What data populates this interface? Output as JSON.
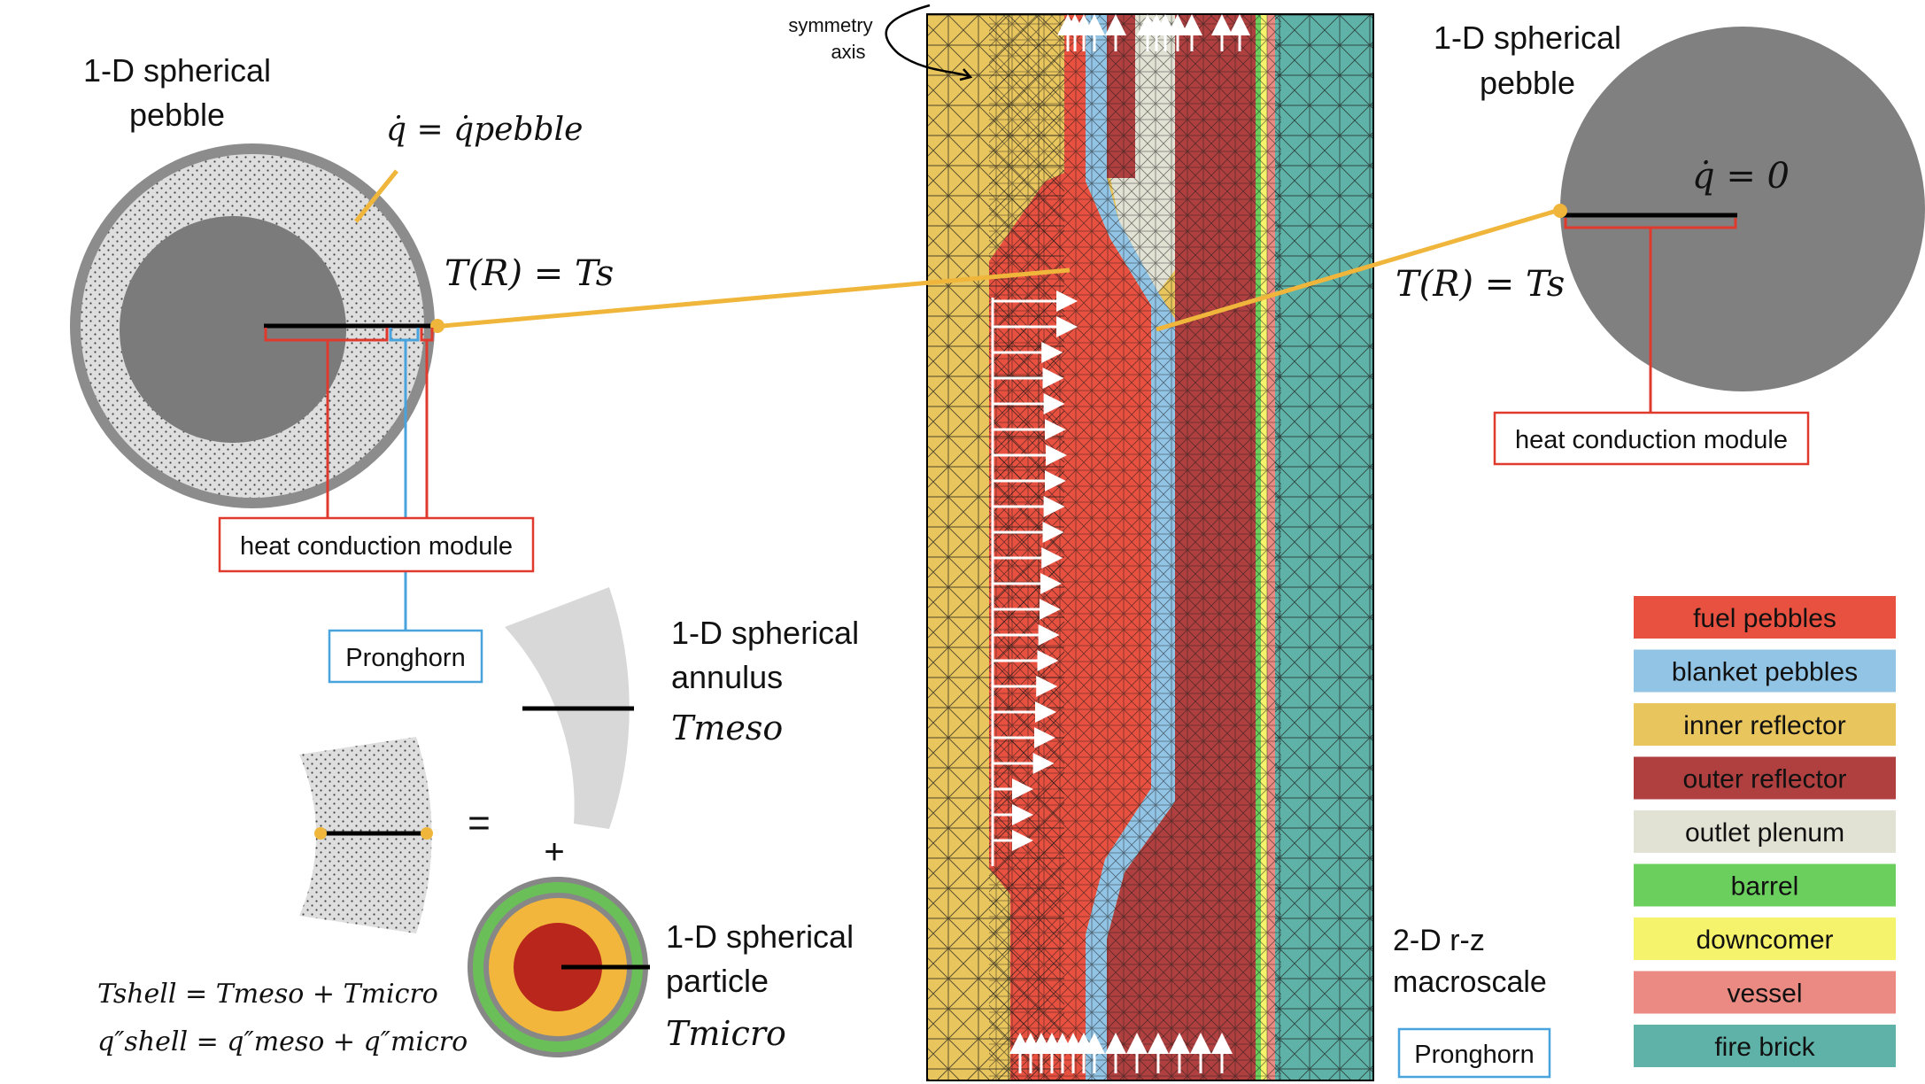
{
  "left_pebble": {
    "title_line1": "1-D spherical",
    "title_line2": "pebble",
    "heat_source_eq": "q̇ = q̇pebble",
    "boundary_eq": "T(R) = Ts",
    "module_label": "heat conduction module",
    "pronghorn_label": "Pronghorn"
  },
  "annulus": {
    "line1": "1-D spherical",
    "line2": "annulus",
    "temp": "Tmeso"
  },
  "particle": {
    "line1": "1-D spherical",
    "line2": "particle",
    "temp": "Tmicro"
  },
  "equals_sign": "=",
  "plus_sign": "+",
  "equations": {
    "shell_temp": "Tshell = Tmeso + Tmicro",
    "shell_flux": "q″shell = q″meso + q″micro"
  },
  "center": {
    "symmetry_line1": "symmetry",
    "symmetry_line2": "axis",
    "macro_line1": "2-D r-z",
    "macro_line2": "macroscale",
    "pronghorn_label": "Pronghorn"
  },
  "right_pebble": {
    "title_line1": "1-D spherical",
    "title_line2": "pebble",
    "heat_source_eq": "q̇ = 0",
    "boundary_eq": "T(R) = Ts",
    "module_label": "heat conduction module"
  },
  "legend": [
    {
      "label": "fuel pebbles",
      "color": "#e8503f"
    },
    {
      "label": "blanket pebbles",
      "color": "#92c4e6"
    },
    {
      "label": "inner reflector",
      "color": "#e8c55d"
    },
    {
      "label": "outer reflector",
      "color": "#b04040"
    },
    {
      "label": "outlet plenum",
      "color": "#e2e2d4"
    },
    {
      "label": "barrel",
      "color": "#6bcf5e"
    },
    {
      "label": "downcomer",
      "color": "#f5f26c"
    },
    {
      "label": "vessel",
      "color": "#ea8a82"
    },
    {
      "label": "fire brick",
      "color": "#5fb2a8"
    }
  ]
}
